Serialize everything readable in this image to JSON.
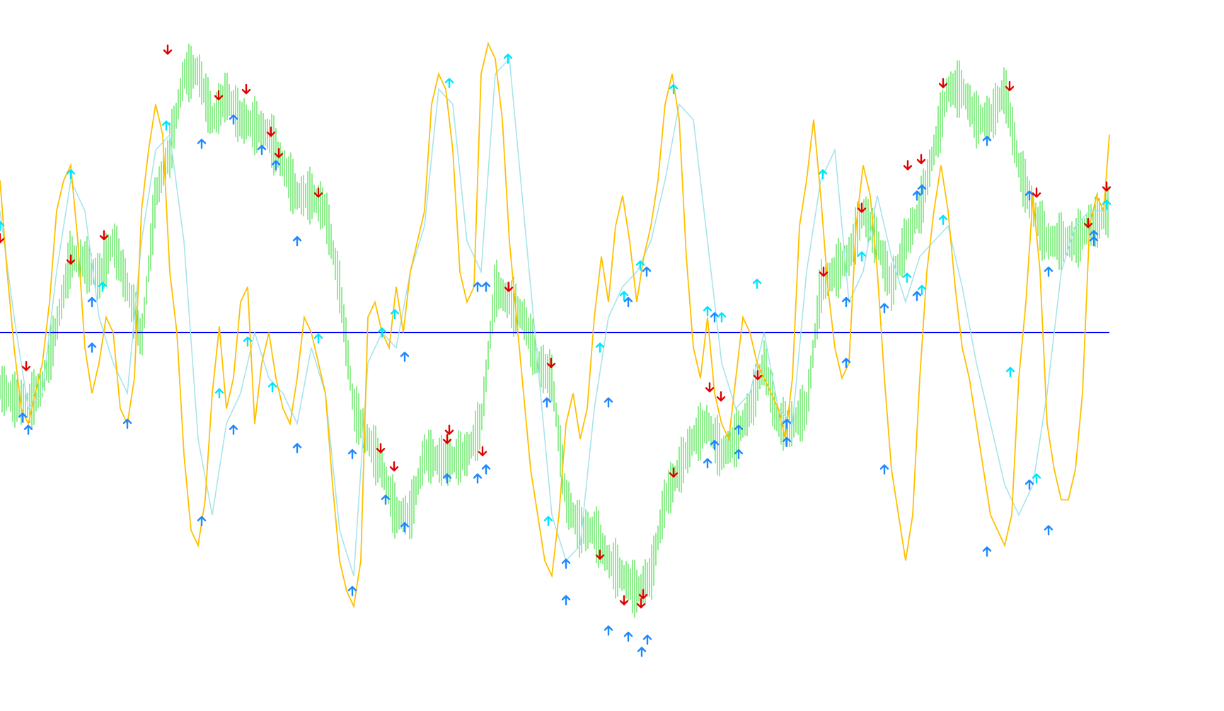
{
  "chart_data": {
    "type": "line",
    "title": "",
    "xlabel": "",
    "ylabel": "",
    "grid": false,
    "legend": "none",
    "x_range": [
      0,
      1568
    ],
    "y_range": [
      -100,
      100
    ],
    "zero_line": 0,
    "colors": {
      "background": "#ffffff",
      "zero_line": "#0000ff",
      "green_bars": "#22dd22",
      "fast_line": "#ffc000",
      "slow_line": "#a8e4ec",
      "arrow_up_blue": "#1e88ff",
      "arrow_up_light": "#00e5ff",
      "arrow_down_red": "#e00000",
      "arrow_down_cyan": "#00e5ff"
    },
    "series": [
      {
        "type": "bar",
        "x": [
          0,
          20,
          40,
          60,
          80,
          100,
          120,
          140,
          160,
          180,
          200,
          220,
          240,
          260,
          280,
          300,
          320,
          340,
          360,
          380,
          400,
          420,
          440,
          460,
          480,
          500,
          520,
          540,
          560,
          580,
          600,
          620,
          640,
          660,
          680,
          700,
          720,
          740,
          760,
          780,
          800,
          820,
          840,
          860,
          880,
          900,
          920,
          940,
          960,
          980,
          1000,
          1020,
          1040,
          1060,
          1080,
          1100,
          1120,
          1140,
          1160,
          1180,
          1200,
          1220,
          1240,
          1260,
          1280,
          1300,
          1320,
          1340,
          1360,
          1380,
          1400,
          1420,
          1440,
          1460,
          1480,
          1500,
          1520,
          1540,
          1568
        ],
        "values": [
          -18,
          -22,
          -24,
          -17,
          2,
          25,
          23,
          18,
          30,
          15,
          -3,
          45,
          60,
          85,
          86,
          70,
          78,
          70,
          68,
          65,
          55,
          45,
          45,
          40,
          15,
          -25,
          -35,
          -45,
          -60,
          -60,
          -40,
          -42,
          -42,
          -40,
          -30,
          15,
          10,
          5,
          -10,
          -15,
          -55,
          -65,
          -65,
          -75,
          -80,
          -85,
          -80,
          -55,
          -45,
          -35,
          -30,
          -40,
          -35,
          -25,
          -10,
          -30,
          -30,
          -25,
          15,
          20,
          25,
          40,
          30,
          15,
          30,
          40,
          60,
          80,
          80,
          70,
          70,
          80,
          55,
          40,
          30,
          30,
          30,
          35,
          40
        ]
      },
      {
        "type": "line",
        "x": [
          0,
          10,
          20,
          30,
          40,
          50,
          60,
          70,
          80,
          90,
          100,
          110,
          120,
          130,
          140,
          150,
          160,
          170,
          180,
          190,
          200,
          210,
          220,
          230,
          240,
          250,
          260,
          270,
          280,
          290,
          300,
          310,
          320,
          330,
          340,
          350,
          360,
          370,
          380,
          390,
          400,
          410,
          420,
          430,
          440,
          450,
          460,
          470,
          480,
          490,
          500,
          510,
          520,
          530,
          540,
          550,
          560,
          570,
          580,
          590,
          600,
          610,
          620,
          630,
          640,
          650,
          660,
          670,
          680,
          690,
          700,
          710,
          720,
          730,
          740,
          750,
          760,
          770,
          780,
          790,
          800,
          810,
          820,
          830,
          840,
          850,
          860,
          870,
          880,
          890,
          900,
          910,
          920,
          930,
          940,
          950,
          960,
          970,
          980,
          990,
          1000,
          1010,
          1020,
          1030,
          1040,
          1050,
          1060,
          1070,
          1080,
          1090,
          1100,
          1110,
          1120,
          1130,
          1140,
          1150,
          1160,
          1170,
          1180,
          1190,
          1200,
          1210,
          1220,
          1230,
          1240,
          1250,
          1260,
          1270,
          1280,
          1290,
          1300,
          1310,
          1320,
          1330,
          1340,
          1350,
          1360,
          1370,
          1380,
          1390,
          1400,
          1410,
          1420,
          1430,
          1440,
          1450,
          1460,
          1470,
          1480,
          1490,
          1500,
          1510,
          1520,
          1530,
          1540,
          1550,
          1560,
          1568
        ],
        "values": [
          50,
          20,
          -5,
          -25,
          -30,
          -20,
          -10,
          10,
          40,
          50,
          55,
          30,
          -5,
          -20,
          -10,
          5,
          0,
          -25,
          -30,
          -15,
          40,
          60,
          75,
          65,
          20,
          0,
          -40,
          -65,
          -70,
          -55,
          -20,
          2,
          -25,
          -15,
          10,
          15,
          -30,
          -10,
          0,
          -15,
          -25,
          -30,
          -15,
          5,
          0,
          -10,
          -20,
          -50,
          -75,
          -85,
          -90,
          -75,
          5,
          10,
          0,
          -5,
          15,
          0,
          20,
          30,
          40,
          75,
          85,
          80,
          60,
          20,
          10,
          15,
          85,
          95,
          90,
          70,
          30,
          5,
          -20,
          -45,
          -60,
          -75,
          -80,
          -60,
          -30,
          -20,
          -35,
          -25,
          5,
          25,
          10,
          35,
          45,
          30,
          10,
          25,
          35,
          50,
          75,
          85,
          70,
          25,
          -5,
          -15,
          5,
          -20,
          -30,
          -35,
          -15,
          5,
          0,
          -10,
          -15,
          -20,
          -25,
          -35,
          -15,
          35,
          50,
          70,
          45,
          15,
          -5,
          -15,
          -10,
          35,
          55,
          45,
          20,
          -15,
          -45,
          -60,
          -75,
          -60,
          -15,
          20,
          40,
          55,
          40,
          15,
          -5,
          -15,
          -30,
          -45,
          -60,
          -65,
          -70,
          -60,
          -15,
          10,
          45,
          20,
          -30,
          -45,
          -55,
          -55,
          -45,
          -20,
          35,
          45,
          40,
          65
        ],
        "name": ""
      },
      {
        "type": "line",
        "x": [
          0,
          20,
          40,
          60,
          80,
          100,
          120,
          140,
          160,
          180,
          200,
          220,
          240,
          260,
          280,
          300,
          320,
          340,
          360,
          380,
          400,
          420,
          440,
          460,
          480,
          500,
          520,
          540,
          560,
          580,
          600,
          620,
          640,
          660,
          680,
          700,
          720,
          740,
          760,
          780,
          800,
          820,
          840,
          860,
          880,
          900,
          920,
          940,
          960,
          980,
          1000,
          1020,
          1040,
          1060,
          1080,
          1100,
          1120,
          1140,
          1160,
          1180,
          1200,
          1220,
          1240,
          1260,
          1280,
          1300,
          1320,
          1340,
          1360,
          1380,
          1400,
          1420,
          1440,
          1460,
          1480,
          1500,
          1520,
          1540,
          1568
        ],
        "values": [
          40,
          5,
          -25,
          -20,
          20,
          50,
          40,
          5,
          -10,
          -20,
          30,
          60,
          65,
          30,
          -35,
          -60,
          -30,
          -20,
          0,
          -15,
          -20,
          -30,
          -5,
          -20,
          -65,
          -80,
          -10,
          0,
          -5,
          20,
          35,
          80,
          75,
          30,
          20,
          85,
          90,
          40,
          -10,
          -60,
          -75,
          -70,
          -25,
          5,
          15,
          20,
          30,
          50,
          75,
          70,
          30,
          -10,
          -25,
          -20,
          0,
          -25,
          -30,
          20,
          50,
          60,
          10,
          20,
          45,
          25,
          10,
          25,
          30,
          35,
          15,
          -10,
          -30,
          -50,
          -60,
          -50,
          -20,
          20,
          35,
          40,
          40
        ]
      }
    ],
    "arrows_up": [
      {
        "x": 0,
        "y": 35,
        "style": "light"
      },
      {
        "x": 32,
        "y": -28,
        "style": "blue"
      },
      {
        "x": 40,
        "y": -32,
        "style": "blue"
      },
      {
        "x": 100,
        "y": 52,
        "style": "light"
      },
      {
        "x": 130,
        "y": 10,
        "style": "blue"
      },
      {
        "x": 145,
        "y": 15,
        "style": "light"
      },
      {
        "x": 130,
        "y": -5,
        "style": "blue"
      },
      {
        "x": 180,
        "y": -30,
        "style": "blue"
      },
      {
        "x": 235,
        "y": 68,
        "style": "light"
      },
      {
        "x": 285,
        "y": 62,
        "style": "blue"
      },
      {
        "x": 285,
        "y": -62,
        "style": "blue"
      },
      {
        "x": 310,
        "y": -20,
        "style": "light"
      },
      {
        "x": 330,
        "y": 70,
        "style": "blue"
      },
      {
        "x": 330,
        "y": -32,
        "style": "blue"
      },
      {
        "x": 350,
        "y": -3,
        "style": "light"
      },
      {
        "x": 370,
        "y": 60,
        "style": "blue"
      },
      {
        "x": 385,
        "y": -18,
        "style": "light"
      },
      {
        "x": 390,
        "y": 55,
        "style": "blue"
      },
      {
        "x": 420,
        "y": 30,
        "style": "blue"
      },
      {
        "x": 420,
        "y": -38,
        "style": "blue"
      },
      {
        "x": 450,
        "y": -2,
        "style": "light"
      },
      {
        "x": 498,
        "y": -40,
        "style": "blue"
      },
      {
        "x": 498,
        "y": -85,
        "style": "blue"
      },
      {
        "x": 540,
        "y": 0,
        "style": "light"
      },
      {
        "x": 545,
        "y": -55,
        "style": "blue"
      },
      {
        "x": 558,
        "y": 6,
        "style": "light"
      },
      {
        "x": 572,
        "y": -8,
        "style": "blue"
      },
      {
        "x": 572,
        "y": -64,
        "style": "blue"
      },
      {
        "x": 632,
        "y": -48,
        "style": "blue"
      },
      {
        "x": 635,
        "y": 82,
        "style": "light"
      },
      {
        "x": 675,
        "y": 15,
        "style": "blue"
      },
      {
        "x": 675,
        "y": -48,
        "style": "blue"
      },
      {
        "x": 687,
        "y": 15,
        "style": "blue"
      },
      {
        "x": 687,
        "y": -45,
        "style": "blue"
      },
      {
        "x": 718,
        "y": 90,
        "style": "light"
      },
      {
        "x": 773,
        "y": -23,
        "style": "blue"
      },
      {
        "x": 775,
        "y": -62,
        "style": "light"
      },
      {
        "x": 800,
        "y": -76,
        "style": "blue"
      },
      {
        "x": 800,
        "y": -88,
        "style": "blue"
      },
      {
        "x": 848,
        "y": -5,
        "style": "light"
      },
      {
        "x": 860,
        "y": -23,
        "style": "blue"
      },
      {
        "x": 860,
        "y": -98,
        "style": "blue"
      },
      {
        "x": 882,
        "y": 12,
        "style": "light"
      },
      {
        "x": 888,
        "y": 10,
        "style": "blue"
      },
      {
        "x": 888,
        "y": -100,
        "style": "blue"
      },
      {
        "x": 905,
        "y": 22,
        "style": "light"
      },
      {
        "x": 907,
        "y": -105,
        "style": "blue"
      },
      {
        "x": 914,
        "y": 20,
        "style": "blue"
      },
      {
        "x": 915,
        "y": -101,
        "style": "blue"
      },
      {
        "x": 952,
        "y": 80,
        "style": "light"
      },
      {
        "x": 1000,
        "y": 7,
        "style": "light"
      },
      {
        "x": 1000,
        "y": -43,
        "style": "blue"
      },
      {
        "x": 1010,
        "y": -37,
        "style": "blue"
      },
      {
        "x": 1010,
        "y": 5,
        "style": "blue"
      },
      {
        "x": 1020,
        "y": 5,
        "style": "light"
      },
      {
        "x": 1044,
        "y": -32,
        "style": "blue"
      },
      {
        "x": 1044,
        "y": -40,
        "style": "blue"
      },
      {
        "x": 1070,
        "y": 16,
        "style": "light"
      },
      {
        "x": 1112,
        "y": -30,
        "style": "blue"
      },
      {
        "x": 1112,
        "y": -36,
        "style": "blue"
      },
      {
        "x": 1163,
        "y": 52,
        "style": "light"
      },
      {
        "x": 1196,
        "y": 10,
        "style": "blue"
      },
      {
        "x": 1196,
        "y": -10,
        "style": "blue"
      },
      {
        "x": 1218,
        "y": 25,
        "style": "light"
      },
      {
        "x": 1250,
        "y": 8,
        "style": "blue"
      },
      {
        "x": 1250,
        "y": -45,
        "style": "blue"
      },
      {
        "x": 1282,
        "y": 18,
        "style": "light"
      },
      {
        "x": 1296,
        "y": 45,
        "style": "blue"
      },
      {
        "x": 1296,
        "y": 12,
        "style": "blue"
      },
      {
        "x": 1303,
        "y": 47,
        "style": "blue"
      },
      {
        "x": 1303,
        "y": 14,
        "style": "light"
      },
      {
        "x": 1333,
        "y": 37,
        "style": "light"
      },
      {
        "x": 1395,
        "y": 63,
        "style": "blue"
      },
      {
        "x": 1395,
        "y": -72,
        "style": "blue"
      },
      {
        "x": 1428,
        "y": -13,
        "style": "light"
      },
      {
        "x": 1455,
        "y": 45,
        "style": "blue"
      },
      {
        "x": 1455,
        "y": -50,
        "style": "blue"
      },
      {
        "x": 1465,
        "y": -48,
        "style": "light"
      },
      {
        "x": 1482,
        "y": 20,
        "style": "blue"
      },
      {
        "x": 1482,
        "y": -65,
        "style": "blue"
      },
      {
        "x": 1546,
        "y": 32,
        "style": "blue"
      },
      {
        "x": 1546,
        "y": 30,
        "style": "blue"
      },
      {
        "x": 1564,
        "y": 42,
        "style": "light"
      }
    ],
    "arrows_down": [
      {
        "x": 0,
        "y": 31,
        "style": "red"
      },
      {
        "x": 37,
        "y": -11,
        "style": "red"
      },
      {
        "x": 100,
        "y": 24,
        "style": "red"
      },
      {
        "x": 147,
        "y": 32,
        "style": "red"
      },
      {
        "x": 237,
        "y": 93,
        "style": "red"
      },
      {
        "x": 309,
        "y": 78,
        "style": "red"
      },
      {
        "x": 348,
        "y": 80,
        "style": "red"
      },
      {
        "x": 383,
        "y": 66,
        "style": "red"
      },
      {
        "x": 394,
        "y": 59,
        "style": "red"
      },
      {
        "x": 450,
        "y": 46,
        "style": "red"
      },
      {
        "x": 538,
        "y": -38,
        "style": "red"
      },
      {
        "x": 557,
        "y": -44,
        "style": "red"
      },
      {
        "x": 632,
        "y": -35,
        "style": "red"
      },
      {
        "x": 635,
        "y": -32,
        "style": "red"
      },
      {
        "x": 682,
        "y": -39,
        "style": "red"
      },
      {
        "x": 719,
        "y": 15,
        "style": "red"
      },
      {
        "x": 779,
        "y": -10,
        "style": "red"
      },
      {
        "x": 848,
        "y": -73,
        "style": "red"
      },
      {
        "x": 882,
        "y": -88,
        "style": "red"
      },
      {
        "x": 906,
        "y": -89,
        "style": "red"
      },
      {
        "x": 909,
        "y": -86,
        "style": "red"
      },
      {
        "x": 952,
        "y": -46,
        "style": "red"
      },
      {
        "x": 1003,
        "y": -18,
        "style": "red"
      },
      {
        "x": 1019,
        "y": -21,
        "style": "red"
      },
      {
        "x": 1071,
        "y": -14,
        "style": "red"
      },
      {
        "x": 1164,
        "y": 20,
        "style": "red"
      },
      {
        "x": 1218,
        "y": 41,
        "style": "red"
      },
      {
        "x": 1283,
        "y": 55,
        "style": "red"
      },
      {
        "x": 1302,
        "y": 57,
        "style": "red"
      },
      {
        "x": 1333,
        "y": 82,
        "style": "red"
      },
      {
        "x": 1427,
        "y": 81,
        "style": "red"
      },
      {
        "x": 1465,
        "y": 46,
        "style": "red"
      },
      {
        "x": 1538,
        "y": 36,
        "style": "red"
      },
      {
        "x": 1564,
        "y": 48,
        "style": "red"
      }
    ]
  }
}
